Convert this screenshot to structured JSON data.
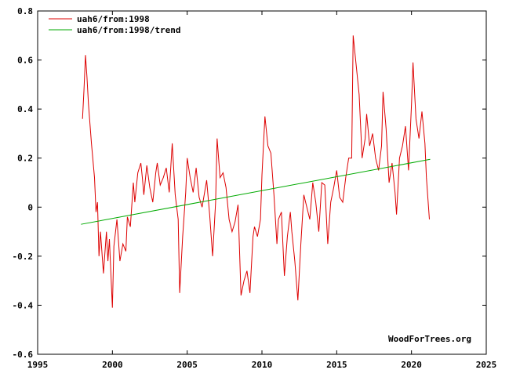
{
  "chart_data": {
    "type": "line",
    "xlim": [
      1995,
      2025
    ],
    "ylim": [
      -0.6,
      0.8
    ],
    "x_ticks": [
      1995,
      2000,
      2005,
      2010,
      2015,
      2020,
      2025
    ],
    "x_tick_labels": [
      "1995",
      "2000",
      "2005",
      "2010",
      "2015",
      "2020",
      "2025"
    ],
    "y_ticks": [
      -0.6,
      -0.4,
      -0.2,
      0,
      0.2,
      0.4,
      0.6,
      0.8
    ],
    "y_tick_labels": [
      "-0.6",
      "-0.4",
      "-0.2",
      "0",
      "0.2",
      "0.4",
      "0.6",
      "0.8"
    ],
    "legend_position": "top-left",
    "watermark": "WoodForTrees.org",
    "series": [
      {
        "name": "uah6/from:1998",
        "color": "#dd0000",
        "x": [
          1998.0,
          1998.1,
          1998.2,
          1998.3,
          1998.4,
          1998.6,
          1998.8,
          1998.9,
          1999.0,
          1999.1,
          1999.2,
          1999.4,
          1999.6,
          1999.7,
          1999.8,
          2000.0,
          2000.1,
          2000.3,
          2000.5,
          2000.7,
          2000.9,
          2001.0,
          2001.2,
          2001.4,
          2001.5,
          2001.7,
          2001.9,
          2002.0,
          2002.1,
          2002.3,
          2002.5,
          2002.7,
          2002.9,
          2003.0,
          2003.2,
          2003.4,
          2003.6,
          2003.8,
          2004.0,
          2004.2,
          2004.4,
          2004.5,
          2004.7,
          2004.9,
          2005.0,
          2005.2,
          2005.4,
          2005.6,
          2005.8,
          2006.0,
          2006.3,
          2006.5,
          2006.7,
          2006.9,
          2007.0,
          2007.2,
          2007.4,
          2007.6,
          2007.8,
          2008.0,
          2008.2,
          2008.4,
          2008.6,
          2008.8,
          2009.0,
          2009.2,
          2009.4,
          2009.5,
          2009.7,
          2009.9,
          2010.0,
          2010.2,
          2010.4,
          2010.6,
          2010.8,
          2011.0,
          2011.1,
          2011.3,
          2011.5,
          2011.7,
          2011.9,
          2012.0,
          2012.2,
          2012.4,
          2012.6,
          2012.8,
          2013.0,
          2013.2,
          2013.4,
          2013.6,
          2013.8,
          2014.0,
          2014.2,
          2014.4,
          2014.6,
          2014.8,
          2015.0,
          2015.2,
          2015.4,
          2015.6,
          2015.8,
          2016.0,
          2016.1,
          2016.3,
          2016.5,
          2016.7,
          2016.9,
          2017.0,
          2017.2,
          2017.4,
          2017.6,
          2017.8,
          2018.0,
          2018.1,
          2018.3,
          2018.5,
          2018.7,
          2018.9,
          2019.0,
          2019.2,
          2019.4,
          2019.6,
          2019.8,
          2020.0,
          2020.1,
          2020.3,
          2020.5,
          2020.7,
          2020.9,
          2021.0,
          2021.2
        ],
        "values": [
          0.36,
          0.48,
          0.62,
          0.53,
          0.42,
          0.26,
          0.12,
          -0.02,
          0.02,
          -0.2,
          -0.1,
          -0.27,
          -0.1,
          -0.22,
          -0.13,
          -0.41,
          -0.16,
          -0.05,
          -0.22,
          -0.15,
          -0.18,
          -0.04,
          -0.08,
          0.1,
          0.02,
          0.14,
          0.18,
          0.12,
          0.05,
          0.17,
          0.08,
          0.02,
          0.14,
          0.18,
          0.09,
          0.12,
          0.16,
          0.06,
          0.26,
          0.05,
          -0.05,
          -0.35,
          -0.12,
          0.06,
          0.2,
          0.12,
          0.06,
          0.16,
          0.04,
          0.0,
          0.11,
          -0.03,
          -0.2,
          0.02,
          0.28,
          0.12,
          0.14,
          0.08,
          -0.05,
          -0.1,
          -0.06,
          0.01,
          -0.36,
          -0.3,
          -0.26,
          -0.35,
          -0.12,
          -0.08,
          -0.12,
          -0.05,
          0.13,
          0.37,
          0.25,
          0.22,
          0.05,
          -0.15,
          -0.05,
          -0.02,
          -0.28,
          -0.12,
          -0.02,
          -0.1,
          -0.22,
          -0.38,
          -0.15,
          0.05,
          0.0,
          -0.05,
          0.1,
          0.02,
          -0.1,
          0.1,
          0.09,
          -0.15,
          0.02,
          0.08,
          0.15,
          0.04,
          0.02,
          0.12,
          0.2,
          0.2,
          0.7,
          0.58,
          0.46,
          0.2,
          0.28,
          0.38,
          0.25,
          0.3,
          0.2,
          0.15,
          0.25,
          0.47,
          0.32,
          0.1,
          0.18,
          0.06,
          -0.03,
          0.2,
          0.25,
          0.33,
          0.15,
          0.42,
          0.59,
          0.36,
          0.28,
          0.39,
          0.26,
          0.12,
          -0.05
        ],
        "trend": {
          "name": "uah6/from:1998/trend",
          "color": "#00aa00",
          "x": [
            1997.9,
            2021.25
          ],
          "values": [
            -0.07,
            0.195
          ]
        }
      }
    ]
  }
}
